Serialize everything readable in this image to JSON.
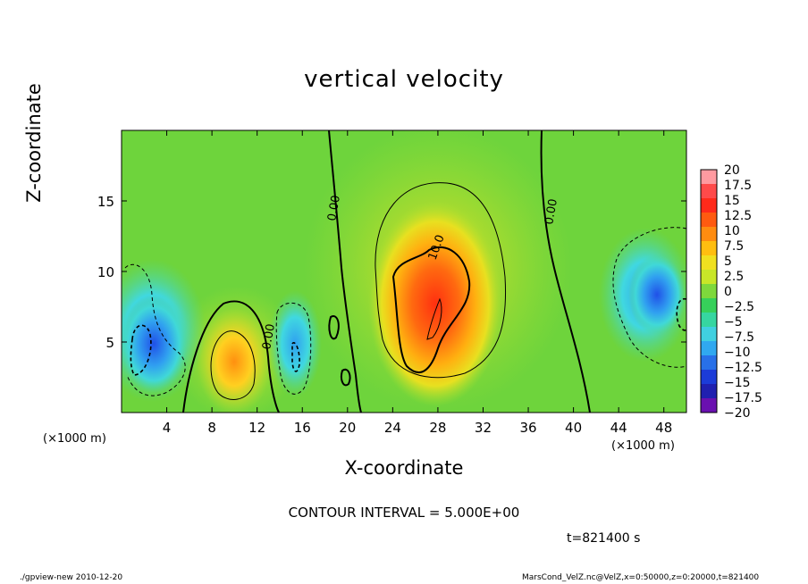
{
  "chart_data": {
    "type": "heatmap",
    "title": "vertical velocity",
    "xlabel": "X-coordinate",
    "ylabel": "Z-coordinate",
    "x_unit": "(×1000 m)",
    "y_unit": "(×1000 m)",
    "xlim": [
      0,
      50
    ],
    "ylim": [
      0,
      20
    ],
    "x_ticks": [
      "4",
      "8",
      "12",
      "16",
      "20",
      "24",
      "28",
      "32",
      "36",
      "40",
      "44",
      "48"
    ],
    "y_ticks": [
      "5",
      "10",
      "15"
    ],
    "colorbar": {
      "labels": [
        "20",
        "17.5",
        "15",
        "12.5",
        "10",
        "7.5",
        "5",
        "2.5",
        "0",
        "−2.5",
        "−5",
        "−7.5",
        "−10",
        "−12.5",
        "−15",
        "−17.5",
        "−20"
      ],
      "colors": [
        "#ff9aa0",
        "#ff4a4a",
        "#ff2a1a",
        "#ff5a10",
        "#ff8c10",
        "#ffbe10",
        "#f0e020",
        "#c8e628",
        "#7ed83c",
        "#36d05a",
        "#36d6a0",
        "#40d0e0",
        "#30a8f0",
        "#2870e8",
        "#1c3cd8",
        "#2020b0",
        "#6a10b0"
      ]
    },
    "contour_labels": [
      "0.00",
      "0.00",
      "0.00",
      "10.0"
    ],
    "contour_interval": "CONTOUR INTERVAL = 5.000E+00",
    "time": "t=821400  s"
  },
  "footer": {
    "left": "./gpview-new   2010-12-20",
    "right": "MarsCond_VelZ.nc@VelZ,x=0:50000,z=0:20000,t=821400"
  }
}
